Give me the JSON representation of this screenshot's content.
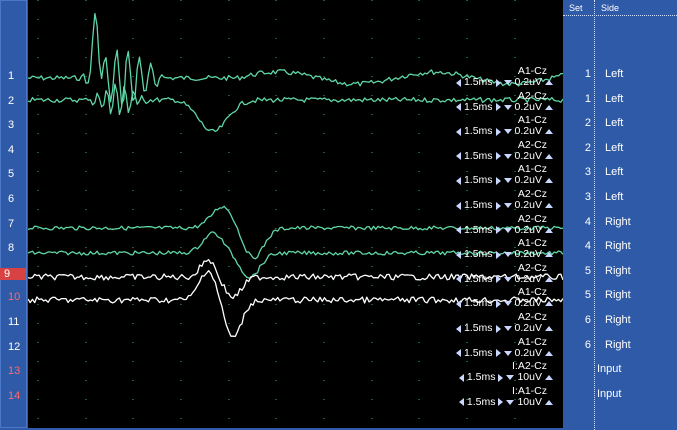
{
  "channels": [
    {
      "num": "1"
    },
    {
      "num": "2"
    },
    {
      "num": "3"
    },
    {
      "num": "4"
    },
    {
      "num": "5"
    },
    {
      "num": "6"
    },
    {
      "num": "7"
    },
    {
      "num": "8"
    },
    {
      "num": "9"
    },
    {
      "num": "10"
    },
    {
      "num": "11"
    },
    {
      "num": "12"
    },
    {
      "num": "13"
    },
    {
      "num": "14"
    }
  ],
  "labels": [
    {
      "name": "A1-Cz",
      "time": "1.5ms",
      "amp": "0.2uV"
    },
    {
      "name": "A2-Cz",
      "time": "1.5ms",
      "amp": "0.2uV"
    },
    {
      "name": "A1-Cz",
      "time": "1.5ms",
      "amp": "0.2uV"
    },
    {
      "name": "A2-Cz",
      "time": "1.5ms",
      "amp": "0.2uV"
    },
    {
      "name": "A1-Cz",
      "time": "1.5ms",
      "amp": "0.2uV"
    },
    {
      "name": "A2-Cz",
      "time": "1.5ms",
      "amp": "0.2uV"
    },
    {
      "name": "A2-Cz",
      "time": "1.5ms",
      "amp": "0.2uV"
    },
    {
      "name": "A1-Cz",
      "time": "1.5ms",
      "amp": "0.2uV"
    },
    {
      "name": "A2-Cz",
      "time": "1.5ms",
      "amp": "0.2uV"
    },
    {
      "name": "A1-Cz",
      "time": "1.5ms",
      "amp": "0.2uV"
    },
    {
      "name": "A2-Cz",
      "time": "1.5ms",
      "amp": "0.2uV"
    },
    {
      "name": "A1-Cz",
      "time": "1.5ms",
      "amp": "0.2uV"
    },
    {
      "name": "I:A2-Cz",
      "time": "1.5ms",
      "amp": "10uV"
    },
    {
      "name": "I:A1-Cz",
      "time": "1.5ms",
      "amp": "10uV"
    }
  ],
  "table": {
    "header": {
      "set": "Set",
      "side": "Side"
    },
    "rows": [
      {
        "set": "1",
        "side": "Left"
      },
      {
        "set": "1",
        "side": "Left"
      },
      {
        "set": "2",
        "side": "Left"
      },
      {
        "set": "2",
        "side": "Left"
      },
      {
        "set": "3",
        "side": "Left"
      },
      {
        "set": "3",
        "side": "Left"
      },
      {
        "set": "4",
        "side": "Right"
      },
      {
        "set": "4",
        "side": "Right"
      },
      {
        "set": "5",
        "side": "Right"
      },
      {
        "set": "5",
        "side": "Right"
      },
      {
        "set": "6",
        "side": "Right"
      },
      {
        "set": "6",
        "side": "Right"
      },
      {
        "set": "",
        "side": "Input"
      },
      {
        "set": "",
        "side": "Input"
      }
    ]
  },
  "colors": {
    "trace_green": "#5fd6a6",
    "trace_white": "#ffffff",
    "grid": "#3fbf9a",
    "selected": "#d84242",
    "panel": "#2f5aa8"
  }
}
